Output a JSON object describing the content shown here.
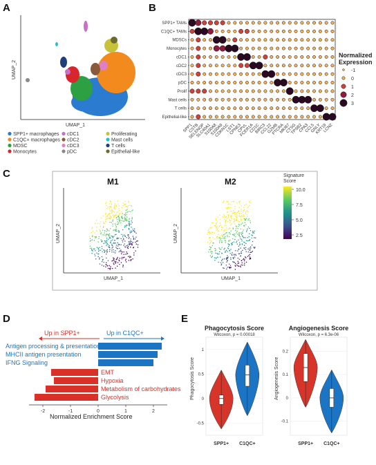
{
  "panels": {
    "A": {
      "label": "A",
      "xlabel": "UMAP_1",
      "ylabel": "UMAP_2",
      "legend": [
        {
          "name": "SPP1+ macrophages",
          "color": "#2b7bd1"
        },
        {
          "name": "C1QC+ macrophages",
          "color": "#f28a1e"
        },
        {
          "name": "MDSC",
          "color": "#2da043"
        },
        {
          "name": "Monocytes",
          "color": "#d8262d"
        },
        {
          "name": "cDC1",
          "color": "#c86fc8"
        },
        {
          "name": "cDC2",
          "color": "#8a5a3c"
        },
        {
          "name": "cDC3",
          "color": "#e07fc3"
        },
        {
          "name": "pDC",
          "color": "#8a8a8a"
        },
        {
          "name": "Proliferating",
          "color": "#c7c23a"
        },
        {
          "name": "Mast cells",
          "color": "#26bfd0"
        },
        {
          "name": "T cells",
          "color": "#1f3f7a"
        },
        {
          "name": "Epithelial-like",
          "color": "#6b6b2e"
        }
      ]
    },
    "B": {
      "label": "B",
      "legend_title": "Normalized Expression",
      "legend_values": [
        "-1",
        "0",
        "1",
        "2",
        "3"
      ]
    },
    "C": {
      "label": "C",
      "xlabel": "UMAP_1",
      "ylabel": "UMAP_2",
      "title1": "M1",
      "title2": "M2",
      "colorbar_title": "Signature Score",
      "colorbar_ticks": [
        "10.0",
        "7.5",
        "5.0",
        "2.5"
      ]
    },
    "D": {
      "label": "D",
      "up_spp1": "Up in SPP1+",
      "up_c1qc": "Up in C1QC+",
      "xlabel": "Normalized Enrichment Score",
      "pos_color": "#1b75c4",
      "neg_color": "#d93028"
    },
    "E": {
      "label": "E",
      "spp1_color": "#d8352a",
      "c1qc_color": "#1b75c4"
    }
  },
  "chart_data": [
    {
      "type": "dotplot",
      "rows": [
        "SPP1+ TAMs",
        "C1QC+ TAMs",
        "MDSCs",
        "Monocytes",
        "cDC1",
        "cDC2",
        "cDC3",
        "pDC",
        "Prolif",
        "Mast cells",
        "T cells",
        "Epithelial-like"
      ],
      "cols": [
        "SPP1",
        "CSTB",
        "SELENOP",
        "SLC40A1",
        "S100A8",
        "S100A9",
        "CDKN1C",
        "LST1",
        "CPNE3",
        "CPVL",
        "FCER1A",
        "CD1C",
        "BIRC3",
        "CCL22",
        "GZMB",
        "PTCRA",
        "MKI67",
        "CTSG",
        "TPSB2",
        "CPA3",
        "CCL5",
        "GNLY",
        "KRT19",
        "LCN2"
      ],
      "values": [
        [
          3,
          2,
          1,
          1,
          1,
          1,
          0,
          0,
          0,
          0,
          0,
          0,
          0,
          0,
          0,
          0,
          0,
          0,
          0,
          0,
          0,
          0,
          0,
          0
        ],
        [
          1,
          3,
          3,
          2,
          0,
          0,
          0,
          0,
          1,
          1,
          0,
          0,
          0,
          0,
          0,
          0,
          0,
          0,
          0,
          0,
          0,
          0,
          0,
          0
        ],
        [
          0,
          1,
          0,
          0,
          3,
          3,
          0,
          1,
          0,
          0,
          0,
          0,
          0,
          0,
          0,
          0,
          0,
          0,
          0,
          0,
          0,
          0,
          0,
          0
        ],
        [
          0,
          1,
          0,
          0,
          2,
          2,
          3,
          3,
          0,
          0,
          0,
          0,
          0,
          0,
          0,
          0,
          0,
          0,
          0,
          0,
          0,
          0,
          0,
          0
        ],
        [
          0,
          1,
          0,
          0,
          0,
          0,
          0,
          0,
          3,
          3,
          0,
          0,
          1,
          0,
          0,
          0,
          0,
          0,
          0,
          0,
          0,
          0,
          0,
          0
        ],
        [
          0,
          1,
          0,
          0,
          0,
          0,
          0,
          0,
          1,
          1,
          3,
          3,
          0,
          0,
          0,
          0,
          0,
          0,
          0,
          0,
          0,
          0,
          0,
          0
        ],
        [
          0,
          1,
          0,
          0,
          0,
          0,
          0,
          0,
          0,
          0,
          0,
          0,
          3,
          3,
          0,
          0,
          0,
          0,
          0,
          0,
          0,
          0,
          0,
          0
        ],
        [
          0,
          0,
          0,
          0,
          0,
          0,
          0,
          0,
          0,
          0,
          0,
          0,
          0,
          0,
          3,
          3,
          0,
          0,
          0,
          0,
          0,
          0,
          0,
          0
        ],
        [
          1,
          1,
          1,
          0,
          0,
          0,
          0,
          0,
          0,
          0,
          0,
          0,
          0,
          0,
          0,
          0,
          3,
          0,
          0,
          0,
          0,
          0,
          0,
          0
        ],
        [
          0,
          0,
          0,
          0,
          0,
          0,
          0,
          0,
          0,
          0,
          0,
          0,
          0,
          0,
          0,
          0,
          0,
          3,
          3,
          3,
          0,
          0,
          0,
          0
        ],
        [
          0,
          0,
          0,
          0,
          0,
          0,
          0,
          0,
          0,
          0,
          0,
          0,
          0,
          0,
          0,
          0,
          0,
          0,
          0,
          0,
          3,
          3,
          0,
          0
        ],
        [
          0,
          1,
          0,
          0,
          0,
          0,
          0,
          0,
          0,
          0,
          0,
          0,
          0,
          0,
          0,
          0,
          0,
          0,
          0,
          0,
          0,
          0,
          3,
          3
        ]
      ]
    },
    {
      "type": "bar",
      "categories": [
        "Antigen processing & presentation",
        "MHCII antigen presentation",
        "IFNG Signaling",
        "EMT",
        "Hypoxia",
        "Metabolism of carbohydrates",
        "Glycolysis"
      ],
      "values": [
        2.3,
        2.15,
        2.0,
        -1.7,
        -1.6,
        -1.9,
        -2.3
      ],
      "xlabel": "Normalized Enrichment Score",
      "xticks": [
        -2,
        -1,
        0,
        1,
        2
      ],
      "xlim": [
        -2.5,
        2.5
      ]
    },
    {
      "type": "violin",
      "title": "Phagocytosis Score",
      "subtitle": "Wilcoxon, p = 0.00018",
      "ylabel": "Phagocytosis Score",
      "categories": [
        "SPP1+",
        "C1QC+"
      ],
      "yticks": [
        -0.5,
        0,
        0.5,
        1.0
      ],
      "ylim": [
        -0.75,
        1.25
      ],
      "medians": [
        0.0,
        0.48
      ],
      "q1": [
        -0.12,
        0.25
      ],
      "q3": [
        0.07,
        0.68
      ],
      "min": [
        -0.62,
        -0.35
      ],
      "max": [
        0.58,
        1.15
      ]
    },
    {
      "type": "violin",
      "title": "Angiogenesis Score",
      "subtitle": "Wilcoxon, p = 6.3e-06",
      "ylabel": "Angiogenesis Score",
      "categories": [
        "SPP1+",
        "C1QC+"
      ],
      "yticks": [
        -0.1,
        0,
        0.1,
        0.2
      ],
      "ylim": [
        -0.16,
        0.26
      ],
      "medians": [
        0.13,
        0.0
      ],
      "q1": [
        0.07,
        -0.04
      ],
      "q3": [
        0.19,
        0.04
      ],
      "min": [
        -0.04,
        -0.15
      ],
      "max": [
        0.25,
        0.12
      ]
    }
  ]
}
